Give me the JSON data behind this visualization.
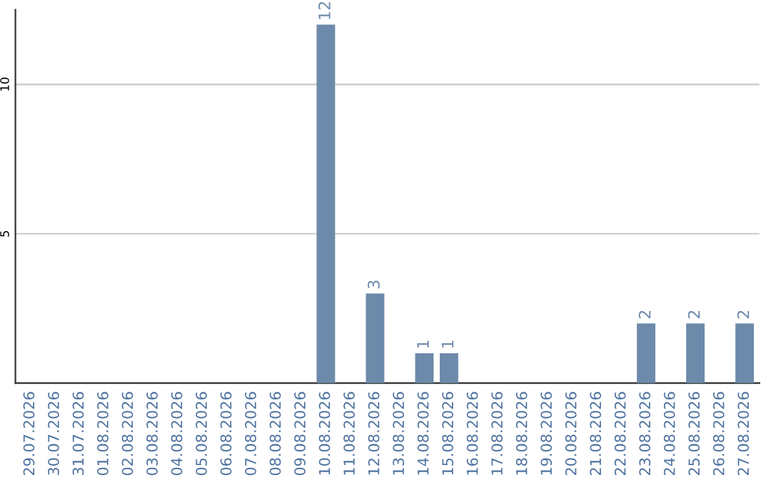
{
  "chart_data": {
    "type": "bar",
    "categories": [
      "29.07.2026",
      "30.07.2026",
      "31.07.2026",
      "01.08.2026",
      "02.08.2026",
      "03.08.2026",
      "04.08.2026",
      "05.08.2026",
      "06.08.2026",
      "07.08.2026",
      "08.08.2026",
      "09.08.2026",
      "10.08.2026",
      "11.08.2026",
      "12.08.2026",
      "13.08.2026",
      "14.08.2026",
      "15.08.2026",
      "16.08.2026",
      "17.08.2026",
      "18.08.2026",
      "19.08.2026",
      "20.08.2026",
      "21.08.2026",
      "22.08.2026",
      "23.08.2026",
      "24.08.2026",
      "25.08.2026",
      "26.08.2026",
      "27.08.2026"
    ],
    "values": [
      0,
      0,
      0,
      0,
      0,
      0,
      0,
      0,
      0,
      0,
      0,
      0,
      12,
      0,
      3,
      0,
      1,
      1,
      0,
      0,
      0,
      0,
      0,
      0,
      0,
      2,
      0,
      2,
      0,
      2
    ],
    "value_labels": [
      null,
      null,
      null,
      null,
      null,
      null,
      null,
      null,
      null,
      null,
      null,
      null,
      "12",
      null,
      "3",
      null,
      "1",
      "1",
      null,
      null,
      null,
      null,
      null,
      null,
      null,
      "2",
      null,
      "2",
      null,
      "2"
    ],
    "color": "#6d8aaa",
    "ylim": [
      0,
      12.5
    ],
    "yticks": [
      5,
      10
    ],
    "grid": "y",
    "legend": false
  }
}
